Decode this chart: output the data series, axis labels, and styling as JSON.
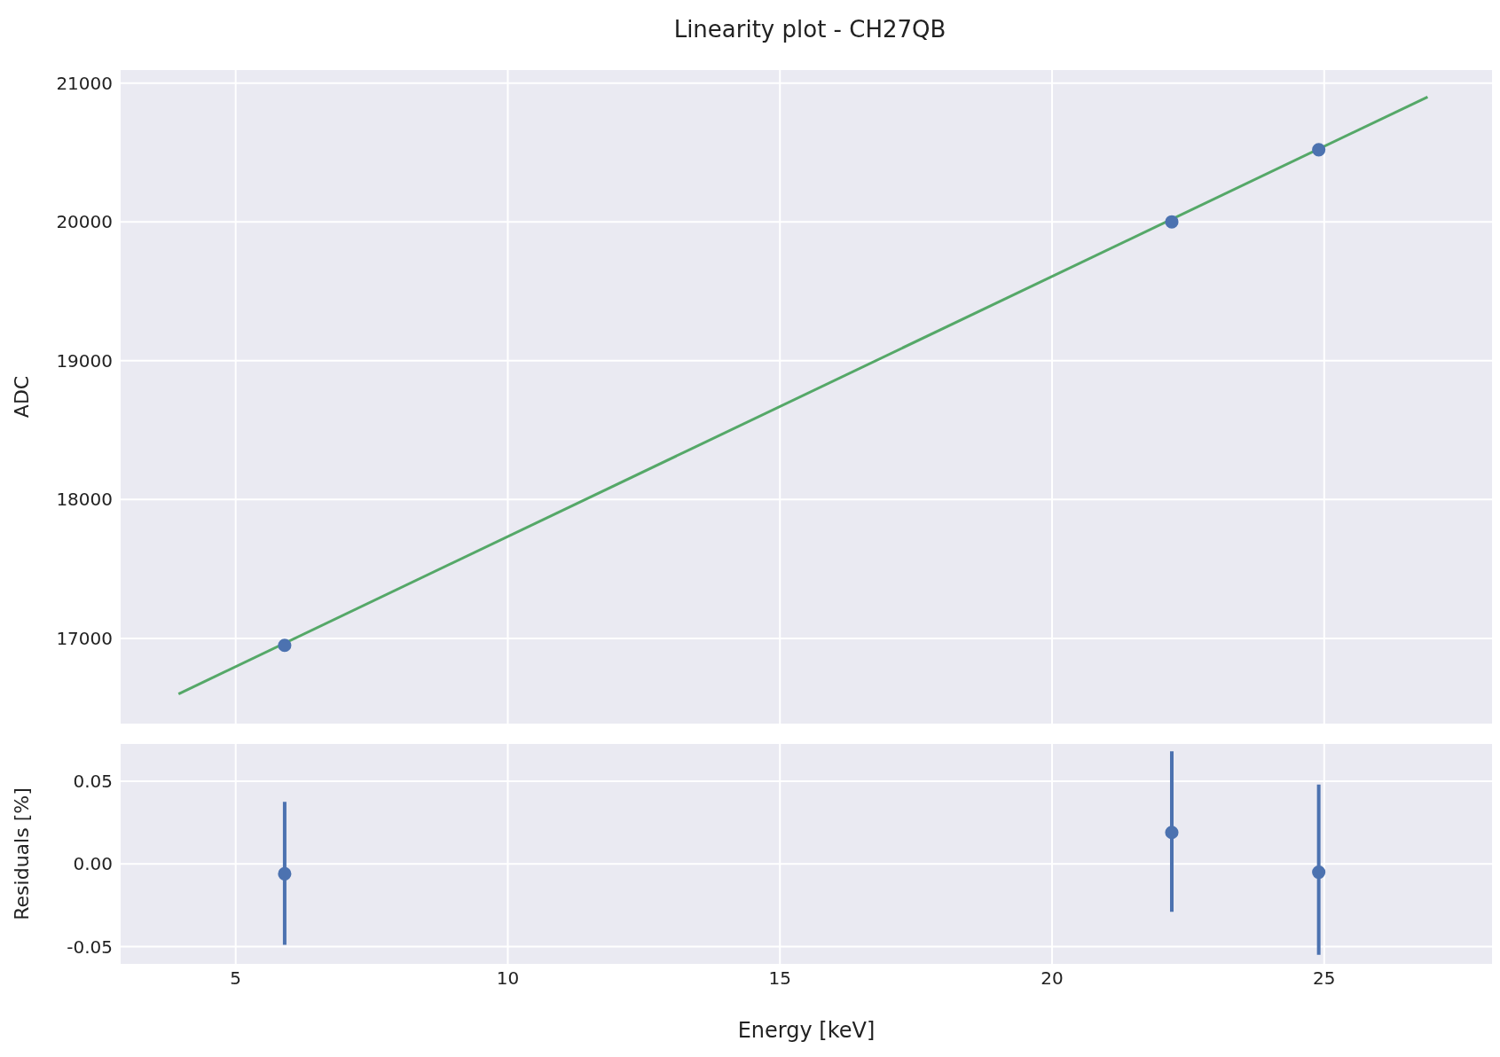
{
  "chart_data": [
    {
      "type": "scatter",
      "title": "Linearity plot - CH27QB",
      "ylabel": "ADC",
      "xlim": [
        2.87,
        28.1
      ],
      "xticks": [
        5,
        10,
        15,
        20,
        25
      ],
      "ylim": [
        16380,
        21100
      ],
      "yticks": [
        17000,
        18000,
        19000,
        20000,
        21000
      ],
      "grid": true,
      "tick_labels": "y",
      "marker": "circle",
      "series": [
        {
          "color": "#4c72b0",
          "x": [
            5.9,
            22.2,
            24.9
          ],
          "values": [
            16950,
            20000,
            20520
          ]
        },
        {
          "type": "line",
          "marker": "none",
          "color": "#55a868",
          "x": [
            3.95,
            26.9
          ],
          "values": [
            16600,
            20900
          ]
        }
      ]
    },
    {
      "type": "scatter",
      "xlabel": "Energy [keV]",
      "ylabel": "Residuals [%]",
      "xlim": [
        2.87,
        28.1
      ],
      "xticks": [
        5,
        10,
        15,
        20,
        25
      ],
      "ylim": [
        -0.061,
        0.073
      ],
      "yticks": [
        {
          "value": -0.05,
          "label": "-0.05"
        },
        {
          "value": 0,
          "label": "0.00"
        },
        {
          "value": 0.05,
          "label": "0.05"
        }
      ],
      "grid": true,
      "marker": "circle",
      "series": [
        {
          "color": "#4c72b0",
          "x": [
            5.9,
            22.2,
            24.9
          ],
          "values": [
            -0.006,
            0.019,
            -0.005
          ],
          "errors": [
            [
              -0.049,
              0.0375
            ],
            [
              -0.029,
              0.068
            ],
            [
              -0.055,
              0.048
            ]
          ]
        }
      ]
    }
  ]
}
